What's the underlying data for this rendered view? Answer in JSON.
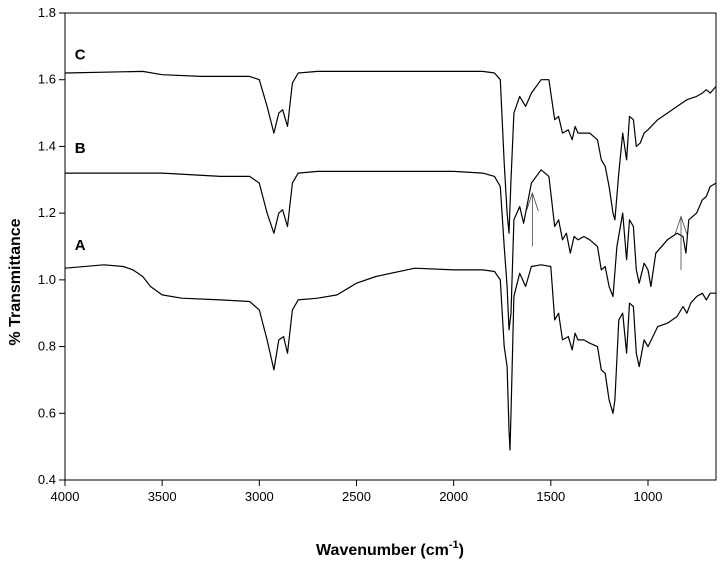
{
  "chart_data": {
    "type": "line",
    "title": "",
    "xlabel_main": "Wavenumber (cm",
    "xlabel_sup": "-1",
    "xlabel_close": ")",
    "ylabel": "% Transmittance",
    "xlim": [
      4000,
      650
    ],
    "ylim": [
      0.4,
      1.8
    ],
    "x_ticks": [
      4000,
      3500,
      3000,
      2500,
      2000,
      1500,
      1000
    ],
    "x_tick_labels": [
      "4000",
      "3500",
      "3000",
      "2500",
      "2000",
      "1500",
      "1000"
    ],
    "y_ticks": [
      0.4,
      0.6,
      0.8,
      1.0,
      1.2,
      1.4,
      1.6,
      1.8
    ],
    "y_tick_labels": [
      "0.4",
      "0.6",
      "0.8",
      "1.0",
      "1.2",
      "1.4",
      "1.6",
      "1.8"
    ],
    "grid": false,
    "line_color": "#000000",
    "series": [
      {
        "name": "A",
        "label_at": [
          3950,
          1.09
        ],
        "points": [
          [
            4000,
            1.035
          ],
          [
            3800,
            1.045
          ],
          [
            3700,
            1.04
          ],
          [
            3650,
            1.03
          ],
          [
            3600,
            1.01
          ],
          [
            3560,
            0.98
          ],
          [
            3500,
            0.955
          ],
          [
            3400,
            0.945
          ],
          [
            3200,
            0.94
          ],
          [
            3050,
            0.935
          ],
          [
            3000,
            0.91
          ],
          [
            2960,
            0.82
          ],
          [
            2925,
            0.73
          ],
          [
            2900,
            0.82
          ],
          [
            2875,
            0.83
          ],
          [
            2855,
            0.78
          ],
          [
            2830,
            0.91
          ],
          [
            2800,
            0.94
          ],
          [
            2700,
            0.945
          ],
          [
            2600,
            0.955
          ],
          [
            2500,
            0.99
          ],
          [
            2400,
            1.01
          ],
          [
            2200,
            1.035
          ],
          [
            2000,
            1.03
          ],
          [
            1850,
            1.03
          ],
          [
            1790,
            1.025
          ],
          [
            1760,
            1.0
          ],
          [
            1740,
            0.8
          ],
          [
            1725,
            0.74
          ],
          [
            1715,
            0.55
          ],
          [
            1710,
            0.49
          ],
          [
            1705,
            0.6
          ],
          [
            1690,
            0.95
          ],
          [
            1660,
            1.02
          ],
          [
            1630,
            0.98
          ],
          [
            1600,
            1.04
          ],
          [
            1550,
            1.045
          ],
          [
            1500,
            1.04
          ],
          [
            1480,
            0.88
          ],
          [
            1460,
            0.9
          ],
          [
            1440,
            0.82
          ],
          [
            1410,
            0.83
          ],
          [
            1390,
            0.79
          ],
          [
            1375,
            0.84
          ],
          [
            1360,
            0.82
          ],
          [
            1330,
            0.82
          ],
          [
            1300,
            0.81
          ],
          [
            1260,
            0.8
          ],
          [
            1240,
            0.73
          ],
          [
            1220,
            0.72
          ],
          [
            1200,
            0.64
          ],
          [
            1180,
            0.6
          ],
          [
            1170,
            0.64
          ],
          [
            1150,
            0.88
          ],
          [
            1130,
            0.9
          ],
          [
            1110,
            0.78
          ],
          [
            1095,
            0.93
          ],
          [
            1075,
            0.92
          ],
          [
            1060,
            0.78
          ],
          [
            1045,
            0.74
          ],
          [
            1020,
            0.82
          ],
          [
            1000,
            0.8
          ],
          [
            950,
            0.86
          ],
          [
            900,
            0.87
          ],
          [
            850,
            0.89
          ],
          [
            820,
            0.92
          ],
          [
            800,
            0.9
          ],
          [
            780,
            0.93
          ],
          [
            750,
            0.95
          ],
          [
            720,
            0.96
          ],
          [
            700,
            0.94
          ],
          [
            680,
            0.96
          ],
          [
            650,
            0.96
          ]
        ]
      },
      {
        "name": "B",
        "label_at": [
          3950,
          1.38
        ],
        "points": [
          [
            4000,
            1.32
          ],
          [
            3500,
            1.32
          ],
          [
            3200,
            1.31
          ],
          [
            3050,
            1.31
          ],
          [
            3000,
            1.29
          ],
          [
            2960,
            1.2
          ],
          [
            2925,
            1.14
          ],
          [
            2900,
            1.2
          ],
          [
            2880,
            1.21
          ],
          [
            2855,
            1.16
          ],
          [
            2830,
            1.29
          ],
          [
            2800,
            1.32
          ],
          [
            2700,
            1.325
          ],
          [
            2000,
            1.325
          ],
          [
            1850,
            1.32
          ],
          [
            1790,
            1.31
          ],
          [
            1760,
            1.28
          ],
          [
            1740,
            1.1
          ],
          [
            1725,
            0.98
          ],
          [
            1715,
            0.85
          ],
          [
            1705,
            0.9
          ],
          [
            1690,
            1.18
          ],
          [
            1660,
            1.22
          ],
          [
            1640,
            1.17
          ],
          [
            1600,
            1.29
          ],
          [
            1550,
            1.33
          ],
          [
            1510,
            1.31
          ],
          [
            1480,
            1.16
          ],
          [
            1460,
            1.18
          ],
          [
            1440,
            1.12
          ],
          [
            1420,
            1.14
          ],
          [
            1400,
            1.08
          ],
          [
            1380,
            1.13
          ],
          [
            1360,
            1.12
          ],
          [
            1330,
            1.13
          ],
          [
            1300,
            1.12
          ],
          [
            1260,
            1.1
          ],
          [
            1240,
            1.03
          ],
          [
            1220,
            1.04
          ],
          [
            1200,
            0.98
          ],
          [
            1180,
            0.95
          ],
          [
            1160,
            1.1
          ],
          [
            1130,
            1.2
          ],
          [
            1110,
            1.06
          ],
          [
            1095,
            1.18
          ],
          [
            1075,
            1.16
          ],
          [
            1060,
            1.03
          ],
          [
            1045,
            0.99
          ],
          [
            1020,
            1.05
          ],
          [
            1000,
            1.03
          ],
          [
            985,
            0.98
          ],
          [
            960,
            1.08
          ],
          [
            900,
            1.12
          ],
          [
            850,
            1.14
          ],
          [
            820,
            1.13
          ],
          [
            805,
            1.08
          ],
          [
            790,
            1.18
          ],
          [
            750,
            1.2
          ],
          [
            720,
            1.24
          ],
          [
            700,
            1.25
          ],
          [
            680,
            1.28
          ],
          [
            650,
            1.29
          ]
        ]
      },
      {
        "name": "C",
        "label_at": [
          3950,
          1.66
        ],
        "points": [
          [
            4000,
            1.62
          ],
          [
            3600,
            1.625
          ],
          [
            3500,
            1.615
          ],
          [
            3300,
            1.61
          ],
          [
            3050,
            1.61
          ],
          [
            3000,
            1.6
          ],
          [
            2960,
            1.52
          ],
          [
            2925,
            1.44
          ],
          [
            2900,
            1.5
          ],
          [
            2880,
            1.51
          ],
          [
            2855,
            1.46
          ],
          [
            2830,
            1.59
          ],
          [
            2800,
            1.62
          ],
          [
            2700,
            1.625
          ],
          [
            2000,
            1.625
          ],
          [
            1850,
            1.625
          ],
          [
            1790,
            1.62
          ],
          [
            1760,
            1.6
          ],
          [
            1740,
            1.35
          ],
          [
            1725,
            1.2
          ],
          [
            1715,
            1.14
          ],
          [
            1705,
            1.3
          ],
          [
            1690,
            1.5
          ],
          [
            1660,
            1.55
          ],
          [
            1630,
            1.52
          ],
          [
            1600,
            1.56
          ],
          [
            1550,
            1.6
          ],
          [
            1510,
            1.6
          ],
          [
            1480,
            1.48
          ],
          [
            1460,
            1.49
          ],
          [
            1440,
            1.44
          ],
          [
            1410,
            1.45
          ],
          [
            1390,
            1.42
          ],
          [
            1375,
            1.46
          ],
          [
            1360,
            1.44
          ],
          [
            1330,
            1.44
          ],
          [
            1300,
            1.44
          ],
          [
            1260,
            1.42
          ],
          [
            1240,
            1.36
          ],
          [
            1220,
            1.34
          ],
          [
            1200,
            1.28
          ],
          [
            1180,
            1.2
          ],
          [
            1170,
            1.18
          ],
          [
            1150,
            1.32
          ],
          [
            1130,
            1.44
          ],
          [
            1110,
            1.36
          ],
          [
            1095,
            1.49
          ],
          [
            1075,
            1.48
          ],
          [
            1060,
            1.4
          ],
          [
            1040,
            1.41
          ],
          [
            1020,
            1.44
          ],
          [
            1000,
            1.45
          ],
          [
            950,
            1.48
          ],
          [
            900,
            1.5
          ],
          [
            850,
            1.52
          ],
          [
            800,
            1.54
          ],
          [
            750,
            1.55
          ],
          [
            720,
            1.56
          ],
          [
            700,
            1.57
          ],
          [
            680,
            1.56
          ],
          [
            650,
            1.58
          ]
        ]
      }
    ],
    "arrows": [
      {
        "name": "arrow-1600",
        "x": 1595,
        "from_y": 1.1,
        "to_y": 1.26
      },
      {
        "name": "arrow-830",
        "x": 830,
        "from_y": 1.03,
        "to_y": 1.19
      }
    ]
  }
}
